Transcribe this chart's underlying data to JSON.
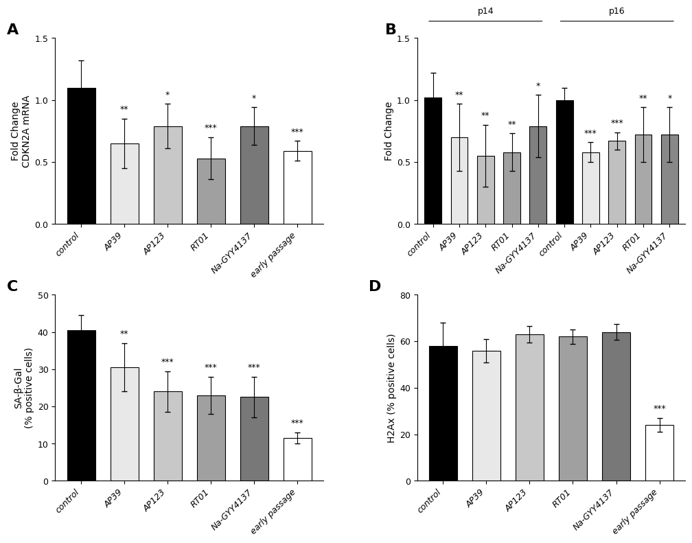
{
  "panel_A": {
    "categories": [
      "control",
      "AP39",
      "AP123",
      "RT01",
      "Na-GYY4137",
      "early passage"
    ],
    "values": [
      1.1,
      0.65,
      0.79,
      0.53,
      0.79,
      0.59
    ],
    "errors": [
      0.22,
      0.2,
      0.18,
      0.17,
      0.15,
      0.08
    ],
    "colors": [
      "#000000",
      "#e8e8e8",
      "#c8c8c8",
      "#a0a0a0",
      "#787878",
      "#ffffff"
    ],
    "significance": [
      "",
      "**",
      "*",
      "***",
      "*",
      "***"
    ],
    "ylabel": "Fold Change\nCDKN2A mRNA",
    "ylim": [
      0,
      1.5
    ],
    "yticks": [
      0.0,
      0.5,
      1.0,
      1.5
    ],
    "panel_label": "A"
  },
  "panel_B": {
    "categories_p14": [
      "control",
      "AP39",
      "AP123",
      "RT01",
      "Na-GYY4137"
    ],
    "values_p14": [
      1.02,
      0.7,
      0.55,
      0.58,
      0.79
    ],
    "errors_p14": [
      0.2,
      0.27,
      0.25,
      0.15,
      0.25
    ],
    "colors_p14": [
      "#000000",
      "#e8e8e8",
      "#c0c0c0",
      "#a0a0a0",
      "#808080"
    ],
    "significance_p14": [
      "",
      "**",
      "**",
      "**",
      "*"
    ],
    "categories_p16": [
      "control",
      "AP39",
      "AP123",
      "RT01",
      "Na-GYY4137"
    ],
    "values_p16": [
      1.0,
      0.58,
      0.67,
      0.72,
      0.72
    ],
    "errors_p16": [
      0.1,
      0.08,
      0.07,
      0.22,
      0.22
    ],
    "colors_p16": [
      "#000000",
      "#e8e8e8",
      "#c0c0c0",
      "#a8a8a8",
      "#888888"
    ],
    "significance_p16": [
      "",
      "***",
      "***",
      "**",
      "*"
    ],
    "ylabel": "Fold Change",
    "ylim": [
      0,
      1.5
    ],
    "yticks": [
      0.0,
      0.5,
      1.0,
      1.5
    ],
    "panel_label": "B"
  },
  "panel_C": {
    "categories": [
      "control",
      "AP39",
      "AP123",
      "RT01",
      "Na-GYY4137",
      "early passage"
    ],
    "values": [
      40.5,
      30.5,
      24.0,
      23.0,
      22.5,
      11.5
    ],
    "errors": [
      4.0,
      6.5,
      5.5,
      5.0,
      5.5,
      1.5
    ],
    "colors": [
      "#000000",
      "#e8e8e8",
      "#c8c8c8",
      "#a0a0a0",
      "#787878",
      "#ffffff"
    ],
    "significance": [
      "",
      "**",
      "***",
      "***",
      "***",
      "***"
    ],
    "ylabel": "SA-β-Gal\n(% positive cells)",
    "ylim": [
      0,
      50
    ],
    "yticks": [
      0,
      10,
      20,
      30,
      40,
      50
    ],
    "panel_label": "C"
  },
  "panel_D": {
    "categories": [
      "control",
      "AP39",
      "AP123",
      "RT01",
      "Na-GYY4137",
      "early passage"
    ],
    "values": [
      58.0,
      56.0,
      63.0,
      62.0,
      64.0,
      24.0
    ],
    "errors": [
      10.0,
      5.0,
      3.5,
      3.0,
      3.5,
      3.0
    ],
    "colors": [
      "#000000",
      "#e8e8e8",
      "#c8c8c8",
      "#a0a0a0",
      "#787878",
      "#ffffff"
    ],
    "significance": [
      "",
      "",
      "",
      "",
      "",
      "***"
    ],
    "ylabel": "H2Ax (% positive cells)",
    "ylim": [
      0,
      80
    ],
    "yticks": [
      0,
      20,
      40,
      60,
      80
    ],
    "panel_label": "D"
  },
  "background_color": "#ffffff",
  "bar_width": 0.65,
  "tick_fontsize": 9,
  "label_fontsize": 10,
  "sig_fontsize": 9,
  "panel_label_fontsize": 16
}
